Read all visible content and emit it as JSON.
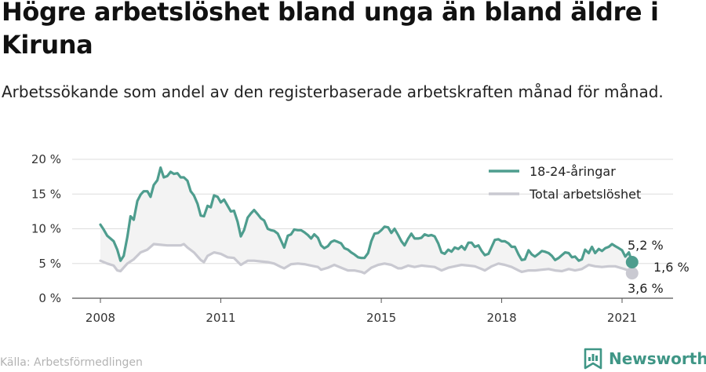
{
  "title": "Högre arbetslöshet bland unga än bland äldre i Kiruna",
  "subtitle": "Arbetssökande som andel av den registerbaserade arbetskraften månad för månad.",
  "source": "Källa: Arbetsförmedlingen",
  "brand": "Newsworthy",
  "colors": {
    "young": "#4e9d8e",
    "total": "#c9c9d1",
    "band": "#f3f3f3",
    "brand": "#3f9686"
  },
  "legend": {
    "young": "18-24-åringar",
    "total": "Total arbetslöshet"
  },
  "end_labels": {
    "young": "5,2 %",
    "total": "3,6 %",
    "diff": "1,6 %"
  },
  "chart_data": {
    "type": "line",
    "ylim": [
      0,
      20
    ],
    "xlim": [
      2008,
      2021.75
    ],
    "y_ticks": [
      {
        "value": 0,
        "label": "0 %"
      },
      {
        "value": 5,
        "label": "5 %"
      },
      {
        "value": 10,
        "label": "10 %"
      },
      {
        "value": 15,
        "label": "15 %"
      },
      {
        "value": 20,
        "label": "20 %"
      }
    ],
    "x_ticks": [
      {
        "value": 2008,
        "label": "2008"
      },
      {
        "value": 2011,
        "label": "2011"
      },
      {
        "value": 2015,
        "label": "2015"
      },
      {
        "value": 2018,
        "label": "2018"
      },
      {
        "value": 2021,
        "label": "2021"
      }
    ],
    "legend_position": "top-right",
    "grid": "horizontal",
    "series": [
      {
        "name": "18-24-åringar",
        "points": [
          [
            2008.0,
            10.6
          ],
          [
            2008.08,
            9.9
          ],
          [
            2008.17,
            9.0
          ],
          [
            2008.25,
            8.6
          ],
          [
            2008.33,
            8.2
          ],
          [
            2008.42,
            7.0
          ],
          [
            2008.5,
            5.4
          ],
          [
            2008.58,
            6.1
          ],
          [
            2008.67,
            8.8
          ],
          [
            2008.75,
            11.8
          ],
          [
            2008.83,
            11.3
          ],
          [
            2008.92,
            14.0
          ],
          [
            2009.0,
            14.9
          ],
          [
            2009.08,
            15.4
          ],
          [
            2009.17,
            15.4
          ],
          [
            2009.25,
            14.6
          ],
          [
            2009.33,
            16.3
          ],
          [
            2009.42,
            17.0
          ],
          [
            2009.5,
            18.8
          ],
          [
            2009.58,
            17.4
          ],
          [
            2009.67,
            17.6
          ],
          [
            2009.75,
            18.2
          ],
          [
            2009.83,
            17.9
          ],
          [
            2009.92,
            18.0
          ],
          [
            2010.0,
            17.4
          ],
          [
            2010.08,
            17.4
          ],
          [
            2010.17,
            16.9
          ],
          [
            2010.25,
            15.4
          ],
          [
            2010.33,
            14.8
          ],
          [
            2010.42,
            13.6
          ],
          [
            2010.5,
            11.9
          ],
          [
            2010.58,
            11.8
          ],
          [
            2010.67,
            13.3
          ],
          [
            2010.75,
            13.1
          ],
          [
            2010.83,
            14.8
          ],
          [
            2010.92,
            14.6
          ],
          [
            2011.0,
            13.8
          ],
          [
            2011.08,
            14.2
          ],
          [
            2011.17,
            13.3
          ],
          [
            2011.25,
            12.5
          ],
          [
            2011.33,
            12.6
          ],
          [
            2011.42,
            11.0
          ],
          [
            2011.5,
            8.9
          ],
          [
            2011.58,
            9.8
          ],
          [
            2011.67,
            11.6
          ],
          [
            2011.75,
            12.2
          ],
          [
            2011.83,
            12.7
          ],
          [
            2011.92,
            12.1
          ],
          [
            2012.0,
            11.5
          ],
          [
            2012.08,
            11.2
          ],
          [
            2012.17,
            10.0
          ],
          [
            2012.25,
            9.8
          ],
          [
            2012.33,
            9.7
          ],
          [
            2012.42,
            9.3
          ],
          [
            2012.5,
            8.3
          ],
          [
            2012.58,
            7.3
          ],
          [
            2012.67,
            9.0
          ],
          [
            2012.75,
            9.2
          ],
          [
            2012.83,
            9.9
          ],
          [
            2012.92,
            9.8
          ],
          [
            2013.0,
            9.8
          ],
          [
            2013.08,
            9.5
          ],
          [
            2013.17,
            9.1
          ],
          [
            2013.25,
            8.6
          ],
          [
            2013.33,
            9.2
          ],
          [
            2013.42,
            8.7
          ],
          [
            2013.5,
            7.6
          ],
          [
            2013.58,
            7.2
          ],
          [
            2013.67,
            7.5
          ],
          [
            2013.75,
            8.1
          ],
          [
            2013.83,
            8.3
          ],
          [
            2013.92,
            8.1
          ],
          [
            2014.0,
            7.9
          ],
          [
            2014.08,
            7.2
          ],
          [
            2014.17,
            7.0
          ],
          [
            2014.25,
            6.6
          ],
          [
            2014.33,
            6.3
          ],
          [
            2014.42,
            5.9
          ],
          [
            2014.5,
            5.8
          ],
          [
            2014.58,
            5.8
          ],
          [
            2014.67,
            6.5
          ],
          [
            2014.75,
            8.2
          ],
          [
            2014.83,
            9.3
          ],
          [
            2014.92,
            9.4
          ],
          [
            2015.0,
            9.8
          ],
          [
            2015.08,
            10.3
          ],
          [
            2015.17,
            10.2
          ],
          [
            2015.25,
            9.4
          ],
          [
            2015.33,
            10.0
          ],
          [
            2015.42,
            9.1
          ],
          [
            2015.5,
            8.2
          ],
          [
            2015.58,
            7.6
          ],
          [
            2015.67,
            8.6
          ],
          [
            2015.75,
            9.3
          ],
          [
            2015.83,
            8.6
          ],
          [
            2015.92,
            8.6
          ],
          [
            2016.0,
            8.7
          ],
          [
            2016.08,
            9.2
          ],
          [
            2016.17,
            9.0
          ],
          [
            2016.25,
            9.1
          ],
          [
            2016.33,
            8.9
          ],
          [
            2016.42,
            7.9
          ],
          [
            2016.5,
            6.6
          ],
          [
            2016.58,
            6.4
          ],
          [
            2016.67,
            7.0
          ],
          [
            2016.75,
            6.7
          ],
          [
            2016.83,
            7.3
          ],
          [
            2016.92,
            7.1
          ],
          [
            2017.0,
            7.5
          ],
          [
            2017.08,
            7.0
          ],
          [
            2017.17,
            8.0
          ],
          [
            2017.25,
            8.0
          ],
          [
            2017.33,
            7.4
          ],
          [
            2017.42,
            7.6
          ],
          [
            2017.5,
            6.8
          ],
          [
            2017.58,
            6.2
          ],
          [
            2017.67,
            6.4
          ],
          [
            2017.75,
            7.4
          ],
          [
            2017.83,
            8.4
          ],
          [
            2017.92,
            8.5
          ],
          [
            2018.0,
            8.2
          ],
          [
            2018.08,
            8.2
          ],
          [
            2018.17,
            7.9
          ],
          [
            2018.25,
            7.4
          ],
          [
            2018.33,
            7.4
          ],
          [
            2018.42,
            6.3
          ],
          [
            2018.5,
            5.5
          ],
          [
            2018.58,
            5.6
          ],
          [
            2018.67,
            6.9
          ],
          [
            2018.75,
            6.3
          ],
          [
            2018.83,
            6.0
          ],
          [
            2018.92,
            6.4
          ],
          [
            2019.0,
            6.8
          ],
          [
            2019.08,
            6.7
          ],
          [
            2019.17,
            6.5
          ],
          [
            2019.25,
            6.1
          ],
          [
            2019.33,
            5.5
          ],
          [
            2019.42,
            5.8
          ],
          [
            2019.5,
            6.2
          ],
          [
            2019.58,
            6.6
          ],
          [
            2019.67,
            6.5
          ],
          [
            2019.75,
            5.9
          ],
          [
            2019.83,
            6.0
          ],
          [
            2019.92,
            5.4
          ],
          [
            2020.0,
            5.6
          ],
          [
            2020.08,
            7.0
          ],
          [
            2020.17,
            6.5
          ],
          [
            2020.25,
            7.4
          ],
          [
            2020.33,
            6.5
          ],
          [
            2020.42,
            7.1
          ],
          [
            2020.5,
            6.8
          ],
          [
            2020.58,
            7.2
          ],
          [
            2020.67,
            7.4
          ],
          [
            2020.75,
            7.8
          ],
          [
            2020.83,
            7.5
          ],
          [
            2020.92,
            7.2
          ],
          [
            2021.0,
            6.9
          ],
          [
            2021.08,
            6.0
          ],
          [
            2021.17,
            6.6
          ],
          [
            2021.25,
            5.2
          ]
        ]
      },
      {
        "name": "Total arbetslöshet",
        "points": [
          [
            2008.0,
            5.4
          ],
          [
            2008.17,
            5.0
          ],
          [
            2008.33,
            4.7
          ],
          [
            2008.42,
            4.0
          ],
          [
            2008.5,
            3.9
          ],
          [
            2008.67,
            5.0
          ],
          [
            2008.83,
            5.6
          ],
          [
            2009.0,
            6.6
          ],
          [
            2009.17,
            7.0
          ],
          [
            2009.33,
            7.8
          ],
          [
            2009.5,
            7.7
          ],
          [
            2009.67,
            7.6
          ],
          [
            2009.83,
            7.6
          ],
          [
            2010.0,
            7.6
          ],
          [
            2010.08,
            7.8
          ],
          [
            2010.17,
            7.3
          ],
          [
            2010.33,
            6.6
          ],
          [
            2010.5,
            5.5
          ],
          [
            2010.58,
            5.2
          ],
          [
            2010.67,
            6.1
          ],
          [
            2010.83,
            6.6
          ],
          [
            2011.0,
            6.4
          ],
          [
            2011.17,
            5.9
          ],
          [
            2011.33,
            5.8
          ],
          [
            2011.5,
            4.8
          ],
          [
            2011.67,
            5.4
          ],
          [
            2011.83,
            5.4
          ],
          [
            2012.0,
            5.3
          ],
          [
            2012.17,
            5.2
          ],
          [
            2012.33,
            5.0
          ],
          [
            2012.5,
            4.5
          ],
          [
            2012.58,
            4.3
          ],
          [
            2012.75,
            4.9
          ],
          [
            2012.92,
            5.0
          ],
          [
            2013.08,
            4.9
          ],
          [
            2013.25,
            4.7
          ],
          [
            2013.42,
            4.5
          ],
          [
            2013.5,
            4.1
          ],
          [
            2013.67,
            4.4
          ],
          [
            2013.83,
            4.8
          ],
          [
            2014.0,
            4.4
          ],
          [
            2014.17,
            4.0
          ],
          [
            2014.33,
            4.0
          ],
          [
            2014.5,
            3.8
          ],
          [
            2014.58,
            3.6
          ],
          [
            2014.75,
            4.4
          ],
          [
            2014.92,
            4.8
          ],
          [
            2015.08,
            5.0
          ],
          [
            2015.25,
            4.8
          ],
          [
            2015.42,
            4.3
          ],
          [
            2015.5,
            4.3
          ],
          [
            2015.67,
            4.7
          ],
          [
            2015.83,
            4.5
          ],
          [
            2016.0,
            4.7
          ],
          [
            2016.17,
            4.6
          ],
          [
            2016.33,
            4.5
          ],
          [
            2016.5,
            4.0
          ],
          [
            2016.67,
            4.4
          ],
          [
            2016.83,
            4.6
          ],
          [
            2017.0,
            4.8
          ],
          [
            2017.17,
            4.7
          ],
          [
            2017.33,
            4.6
          ],
          [
            2017.5,
            4.2
          ],
          [
            2017.58,
            4.0
          ],
          [
            2017.75,
            4.6
          ],
          [
            2017.92,
            5.0
          ],
          [
            2018.08,
            4.8
          ],
          [
            2018.25,
            4.5
          ],
          [
            2018.42,
            4.0
          ],
          [
            2018.5,
            3.8
          ],
          [
            2018.67,
            4.0
          ],
          [
            2018.83,
            4.0
          ],
          [
            2019.0,
            4.1
          ],
          [
            2019.17,
            4.2
          ],
          [
            2019.33,
            4.0
          ],
          [
            2019.5,
            3.9
          ],
          [
            2019.67,
            4.2
          ],
          [
            2019.83,
            4.0
          ],
          [
            2020.0,
            4.2
          ],
          [
            2020.17,
            4.8
          ],
          [
            2020.33,
            4.6
          ],
          [
            2020.5,
            4.5
          ],
          [
            2020.67,
            4.6
          ],
          [
            2020.83,
            4.6
          ],
          [
            2021.0,
            4.3
          ],
          [
            2021.17,
            4.0
          ],
          [
            2021.25,
            3.6
          ]
        ]
      }
    ]
  }
}
